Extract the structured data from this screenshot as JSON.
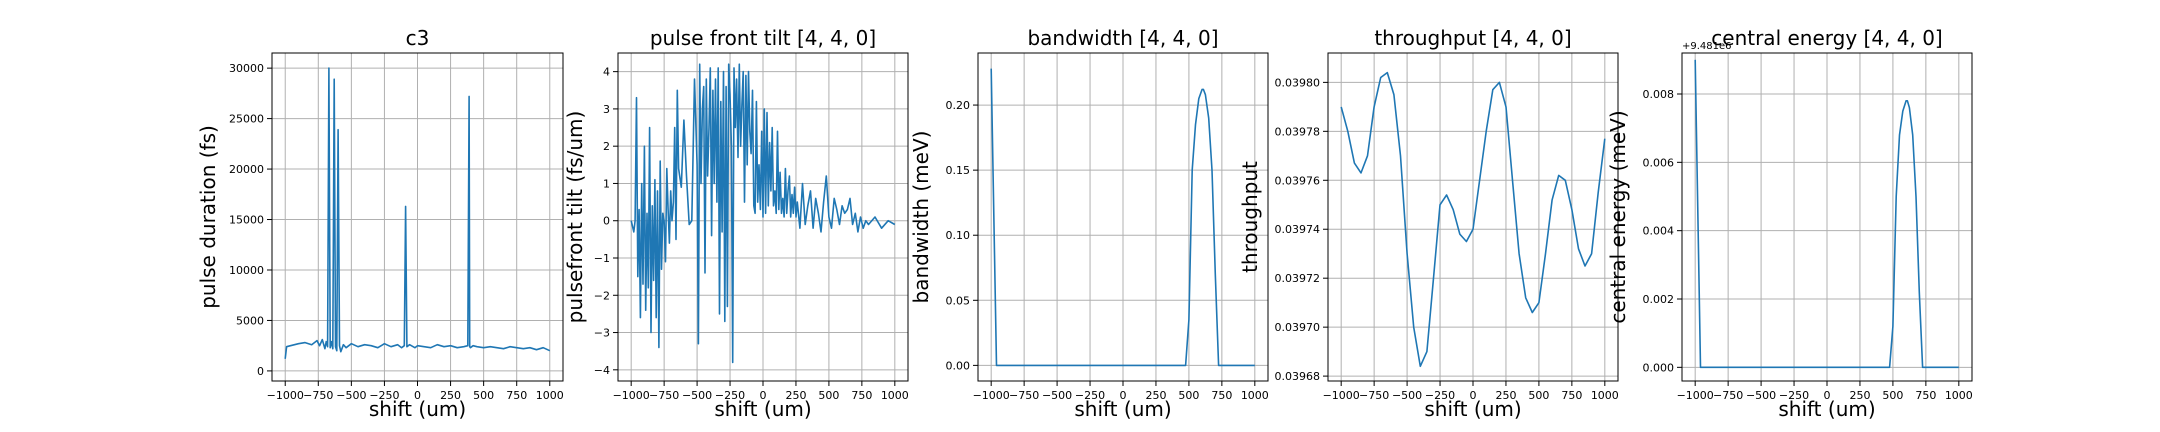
{
  "colors": {
    "series": "#1f77b4",
    "grid": "#b0b0b0"
  },
  "chart_data": [
    {
      "type": "line",
      "title": "c3",
      "xlabel": "shift (um)",
      "ylabel": "pulse duration (fs)",
      "xlim": [
        -1100,
        1100
      ],
      "ylim": [
        -1000,
        31500
      ],
      "xticks": [
        -1000,
        -750,
        -500,
        -250,
        0,
        250,
        500,
        750,
        1000
      ],
      "xtick_labels": [
        "−1000",
        "−750",
        "−500",
        "−250",
        "0",
        "250",
        "500",
        "750",
        "1000"
      ],
      "yticks": [
        0,
        5000,
        10000,
        15000,
        20000,
        25000,
        30000
      ],
      "ytick_labels": [
        "0",
        "5000",
        "10000",
        "15000",
        "20000",
        "25000",
        "30000"
      ],
      "grid": true,
      "series": [
        {
          "x": [
            -1000,
            -990,
            -960,
            -900,
            -850,
            -800,
            -760,
            -740,
            -720,
            -700,
            -690,
            -680,
            -670,
            -660,
            -650,
            -640,
            -630,
            -620,
            -610,
            -600,
            -590,
            -580,
            -560,
            -540,
            -500,
            -450,
            -400,
            -350,
            -300,
            -250,
            -200,
            -150,
            -120,
            -100,
            -90,
            -80,
            -60,
            -20,
            0,
            50,
            100,
            150,
            200,
            250,
            300,
            350,
            380,
            390,
            395,
            400,
            420,
            450,
            500,
            550,
            600,
            650,
            700,
            750,
            800,
            850,
            900,
            950,
            1000
          ],
          "y": [
            1200,
            2400,
            2500,
            2700,
            2800,
            2600,
            3000,
            2500,
            3100,
            2200,
            2900,
            2400,
            30000,
            2300,
            2900,
            2200,
            28900,
            2400,
            2000,
            23900,
            2500,
            1900,
            2600,
            2300,
            2700,
            2400,
            2600,
            2500,
            2300,
            2700,
            2400,
            2600,
            2300,
            2500,
            16300,
            2400,
            2600,
            2300,
            2500,
            2400,
            2300,
            2600,
            2400,
            2500,
            2300,
            2400,
            2500,
            27200,
            2400,
            2300,
            2500,
            2400,
            2300,
            2400,
            2300,
            2200,
            2400,
            2300,
            2200,
            2300,
            2100,
            2300,
            2000
          ]
        }
      ]
    },
    {
      "type": "line",
      "title": "pulse front tilt [4, 4, 0]",
      "xlabel": "shift (um)",
      "ylabel": "pulsefront tilt (fs/um)",
      "xlim": [
        -1100,
        1100
      ],
      "ylim": [
        -4.3,
        4.5
      ],
      "xticks": [
        -1000,
        -750,
        -500,
        -250,
        0,
        250,
        500,
        750,
        1000
      ],
      "xtick_labels": [
        "−1000",
        "−750",
        "−500",
        "−250",
        "0",
        "250",
        "500",
        "750",
        "1000"
      ],
      "yticks": [
        -4,
        -3,
        -2,
        -1,
        0,
        1,
        2,
        3,
        4
      ],
      "ytick_labels": [
        "−4",
        "−3",
        "−2",
        "−1",
        "0",
        "1",
        "2",
        "3",
        "4"
      ],
      "grid": true,
      "series": [
        {
          "x": [
            -1000,
            -980,
            -970,
            -960,
            -950,
            -940,
            -930,
            -920,
            -910,
            -900,
            -890,
            -880,
            -870,
            -860,
            -850,
            -840,
            -830,
            -820,
            -810,
            -800,
            -790,
            -780,
            -770,
            -760,
            -750,
            -740,
            -730,
            -720,
            -710,
            -700,
            -690,
            -680,
            -670,
            -660,
            -650,
            -640,
            -620,
            -600,
            -580,
            -560,
            -540,
            -520,
            -500,
            -490,
            -480,
            -470,
            -460,
            -450,
            -440,
            -430,
            -420,
            -410,
            -400,
            -390,
            -380,
            -370,
            -360,
            -350,
            -340,
            -330,
            -320,
            -310,
            -300,
            -290,
            -280,
            -270,
            -260,
            -250,
            -240,
            -230,
            -220,
            -210,
            -200,
            -190,
            -180,
            -170,
            -160,
            -150,
            -140,
            -130,
            -120,
            -110,
            -100,
            -90,
            -80,
            -70,
            -60,
            -50,
            -40,
            -30,
            -20,
            -10,
            0,
            10,
            20,
            30,
            40,
            50,
            60,
            70,
            80,
            90,
            100,
            110,
            120,
            130,
            140,
            150,
            160,
            170,
            180,
            190,
            200,
            210,
            220,
            230,
            240,
            250,
            260,
            280,
            300,
            320,
            340,
            360,
            380,
            400,
            420,
            440,
            460,
            480,
            500,
            520,
            540,
            560,
            580,
            600,
            620,
            640,
            660,
            680,
            700,
            720,
            740,
            760,
            780,
            800,
            850,
            900,
            950,
            1000
          ],
          "y": [
            0,
            -0.3,
            0,
            3.3,
            -1.5,
            0.3,
            -2.6,
            1.0,
            -1.7,
            2.0,
            -2.4,
            0.2,
            -1.8,
            2.5,
            -3.0,
            0.4,
            -1.6,
            1.1,
            -2.6,
            0.8,
            -3.4,
            1.6,
            -1.3,
            0.2,
            0,
            -1.1,
            1.4,
            0.3,
            -0.6,
            0.8,
            0,
            0.5,
            2.5,
            -0.5,
            3.5,
            1.4,
            0.9,
            2.7,
            1.2,
            -0.1,
            0,
            3.8,
            1.5,
            -3.3,
            4.2,
            1.0,
            3.0,
            3.6,
            -1.4,
            3.8,
            1.2,
            2.5,
            4.1,
            -0.4,
            3.5,
            1.0,
            3.8,
            0.5,
            4.1,
            -2.5,
            3.2,
            -0.3,
            4.0,
            -2.7,
            3.6,
            -2.3,
            4.2,
            3.4,
            2.0,
            -3.8,
            4.1,
            2.5,
            3.8,
            1.7,
            4.2,
            2.0,
            3.1,
            4.0,
            0.5,
            3.9,
            1.5,
            4.0,
            2.4,
            1.8,
            3.5,
            0.4,
            0.2,
            3.2,
            0.5,
            1.5,
            0.3,
            2.4,
            0.1,
            3.0,
            0.2,
            2.9,
            0.4,
            2.1,
            0.8,
            2.5,
            0.4,
            0.8,
            0.2,
            2.4,
            0.3,
            1.3,
            0.2,
            0.6,
            0.1,
            1.4,
            0.2,
            0.8,
            1.2,
            0.1,
            0.7,
            0.2,
            0.9,
            0.1,
            0.5,
            -0.2,
            1.0,
            -0.1,
            0.4,
            0.8,
            -0.2,
            0.6,
            0.2,
            -0.3,
            0.5,
            1.2,
            0.1,
            -0.2,
            0.6,
            0.3,
            -0.1,
            0.4,
            0.2,
            0.3,
            0.6,
            -0.1,
            0.2,
            -0.3,
            0.1,
            -0.2,
            0,
            -0.1,
            0.1,
            -0.2,
            0,
            -0.1
          ]
        }
      ]
    },
    {
      "type": "line",
      "title": "bandwidth [4, 4, 0]",
      "xlabel": "shift (um)",
      "ylabel": "bandwidth (meV)",
      "xlim": [
        -1100,
        1100
      ],
      "ylim": [
        -0.012,
        0.24
      ],
      "xticks": [
        -1000,
        -750,
        -500,
        -250,
        0,
        250,
        500,
        750,
        1000
      ],
      "xtick_labels": [
        "−1000",
        "−750",
        "−500",
        "−250",
        "0",
        "250",
        "500",
        "750",
        "1000"
      ],
      "yticks": [
        0,
        0.05,
        0.1,
        0.15,
        0.2
      ],
      "ytick_labels": [
        "0.00",
        "0.05",
        "0.10",
        "0.15",
        "0.20"
      ],
      "grid": true,
      "series": [
        {
          "x": [
            -1000,
            -960,
            -950,
            450,
            475,
            500,
            525,
            550,
            575,
            600,
            610,
            625,
            650,
            675,
            700,
            725,
            1000
          ],
          "y": [
            0.228,
            0,
            0,
            0,
            0,
            0.035,
            0.15,
            0.185,
            0.205,
            0.212,
            0.212,
            0.208,
            0.19,
            0.15,
            0.07,
            0,
            0
          ]
        }
      ]
    },
    {
      "type": "line",
      "title": "throughput [4, 4, 0]",
      "xlabel": "shift (um)",
      "ylabel": "throughput",
      "xlim": [
        -1100,
        1100
      ],
      "ylim": [
        0.039678,
        0.039812
      ],
      "xticks": [
        -1000,
        -750,
        -500,
        -250,
        0,
        250,
        500,
        750,
        1000
      ],
      "xtick_labels": [
        "−1000",
        "−750",
        "−500",
        "−250",
        "0",
        "250",
        "500",
        "750",
        "1000"
      ],
      "yticks": [
        0.03968,
        0.0397,
        0.03972,
        0.03974,
        0.03976,
        0.03978,
        0.0398
      ],
      "ytick_labels": [
        "0.03968",
        "0.03970",
        "0.03972",
        "0.03974",
        "0.03976",
        "0.03978",
        "0.03980"
      ],
      "grid": true,
      "series": [
        {
          "x": [
            -1000,
            -950,
            -900,
            -850,
            -800,
            -750,
            -700,
            -650,
            -600,
            -550,
            -500,
            -450,
            -400,
            -350,
            -300,
            -250,
            -200,
            -150,
            -100,
            -50,
            0,
            50,
            100,
            150,
            200,
            250,
            300,
            350,
            400,
            450,
            500,
            550,
            600,
            650,
            700,
            750,
            800,
            850,
            900,
            950,
            1000
          ],
          "y": [
            0.03979,
            0.03978,
            0.039767,
            0.039763,
            0.03977,
            0.03979,
            0.039802,
            0.039804,
            0.039795,
            0.03977,
            0.03973,
            0.0397,
            0.039684,
            0.03969,
            0.03972,
            0.03975,
            0.039754,
            0.039748,
            0.039738,
            0.039735,
            0.03974,
            0.03976,
            0.03978,
            0.039797,
            0.0398,
            0.03979,
            0.03976,
            0.03973,
            0.039712,
            0.039706,
            0.03971,
            0.03973,
            0.039752,
            0.039762,
            0.03976,
            0.039748,
            0.039732,
            0.039725,
            0.03973,
            0.039755,
            0.039777
          ]
        }
      ]
    },
    {
      "type": "line",
      "title": "central energy [4, 4, 0]",
      "xlabel": "shift (um)",
      "ylabel": "central energy (meV)",
      "y_offset_label": "+9.481e6",
      "xlim": [
        -1100,
        1100
      ],
      "ylim": [
        -0.0004,
        0.0092
      ],
      "xticks": [
        -1000,
        -750,
        -500,
        -250,
        0,
        250,
        500,
        750,
        1000
      ],
      "xtick_labels": [
        "−1000",
        "−750",
        "−500",
        "−250",
        "0",
        "250",
        "500",
        "750",
        "1000"
      ],
      "yticks": [
        0,
        0.002,
        0.004,
        0.006,
        0.008
      ],
      "ytick_labels": [
        "0.000",
        "0.002",
        "0.004",
        "0.006",
        "0.008"
      ],
      "grid": true,
      "series": [
        {
          "x": [
            -1000,
            -960,
            -950,
            450,
            475,
            500,
            525,
            550,
            575,
            600,
            610,
            625,
            650,
            675,
            700,
            725,
            1000
          ],
          "y": [
            0.009,
            0,
            0,
            0,
            0,
            0.0012,
            0.005,
            0.0068,
            0.0075,
            0.0078,
            0.0078,
            0.0076,
            0.0068,
            0.005,
            0.0022,
            0,
            0
          ]
        }
      ]
    }
  ]
}
